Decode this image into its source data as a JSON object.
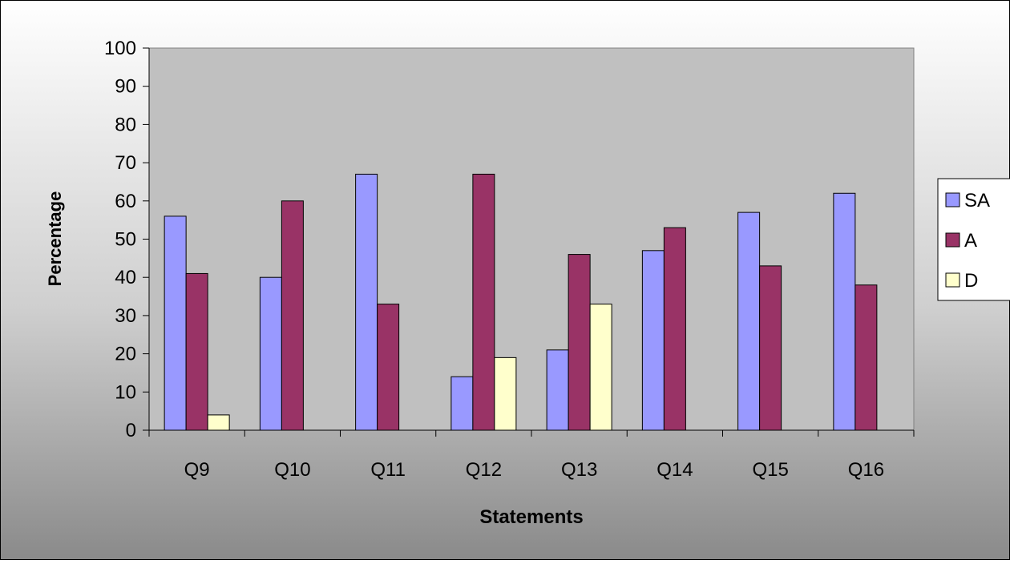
{
  "chart_data": {
    "type": "bar",
    "title": "",
    "xlabel": "Statements",
    "ylabel": "Percentage",
    "categories": [
      "Q9",
      "Q10",
      "Q11",
      "Q12",
      "Q13",
      "Q14",
      "Q15",
      "Q16"
    ],
    "series": [
      {
        "name": "SA",
        "color": "#9999ff",
        "values": [
          56,
          40,
          67,
          14,
          21,
          47,
          57,
          62
        ]
      },
      {
        "name": "A",
        "color": "#993366",
        "values": [
          41,
          60,
          33,
          67,
          46,
          53,
          43,
          38
        ]
      },
      {
        "name": "D",
        "color": "#ffffcc",
        "values": [
          4,
          null,
          null,
          19,
          33,
          null,
          null,
          null
        ]
      }
    ],
    "ylim": [
      0,
      100
    ],
    "yticks": [
      "0",
      "10",
      "20",
      "30",
      "40",
      "50",
      "60",
      "70",
      "80",
      "90",
      "100"
    ],
    "legend_position": "right",
    "grid": false,
    "plot_background": "#c0c0c0",
    "outer_background": "gradient-gray"
  }
}
